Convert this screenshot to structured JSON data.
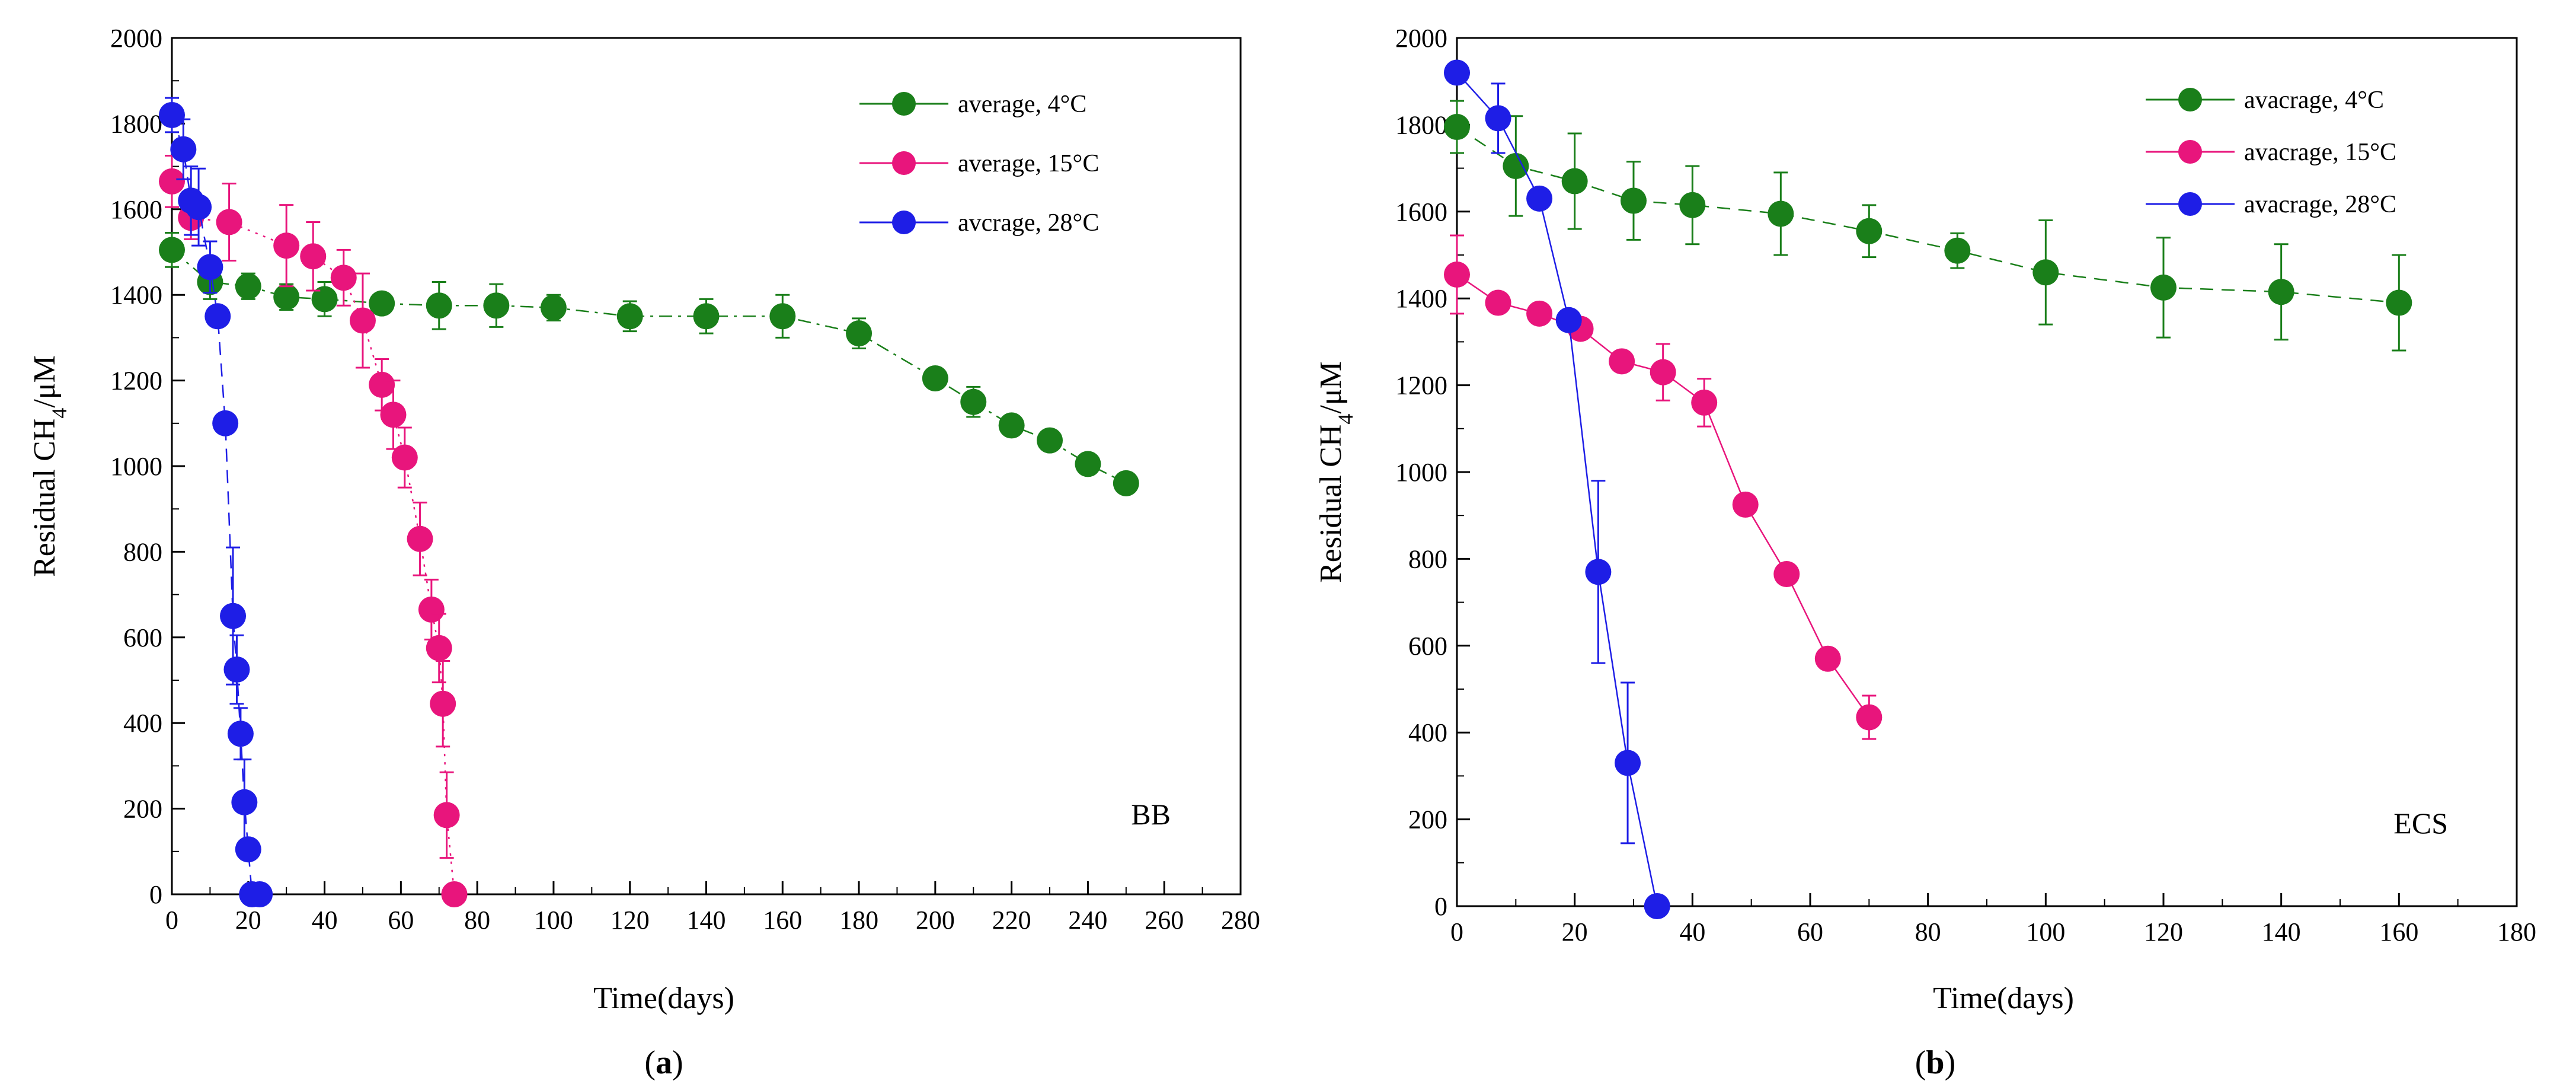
{
  "chart_data": [
    {
      "type": "scatter",
      "panel_label": "(a)",
      "panel_letter": "a",
      "corner_label": "BB",
      "xlabel": "Time(days)",
      "ylabel": "Residual CH4/μM",
      "xlim": [
        0,
        280
      ],
      "ylim": [
        0,
        2000
      ],
      "xticks": [
        0,
        20,
        40,
        60,
        80,
        100,
        120,
        140,
        160,
        180,
        200,
        220,
        240,
        260,
        280
      ],
      "yticks": [
        0,
        200,
        400,
        600,
        800,
        1000,
        1200,
        1400,
        1600,
        1800,
        2000
      ],
      "legend_position": "top-right",
      "series": [
        {
          "name": "average, 4°C",
          "color": "#1a7f1a",
          "line": "dash-dot",
          "x": [
            0,
            10,
            20,
            30,
            40,
            55,
            70,
            85,
            100,
            120,
            140,
            160,
            180,
            200,
            210,
            220,
            230,
            240,
            250
          ],
          "y": [
            1505,
            1430,
            1420,
            1395,
            1390,
            1380,
            1375,
            1375,
            1370,
            1350,
            1350,
            1350,
            1310,
            1205,
            1150,
            1095,
            1060,
            1005,
            960
          ],
          "err": [
            40,
            40,
            30,
            30,
            40,
            20,
            55,
            50,
            30,
            35,
            40,
            50,
            35,
            0,
            35,
            0,
            0,
            0,
            0
          ]
        },
        {
          "name": "average, 15°C",
          "color": "#e8157c",
          "line": "dotted",
          "x": [
            0,
            5,
            15,
            30,
            37,
            45,
            50,
            55,
            58,
            61,
            65,
            68,
            70,
            71,
            72,
            74
          ],
          "y": [
            1665,
            1580,
            1570,
            1515,
            1490,
            1440,
            1340,
            1190,
            1120,
            1020,
            830,
            665,
            575,
            445,
            185,
            0
          ],
          "err": [
            60,
            50,
            90,
            95,
            80,
            65,
            110,
            60,
            80,
            70,
            85,
            70,
            80,
            100,
            100,
            0
          ]
        },
        {
          "name": "avcrage, 28°C",
          "color": "#1e1ee6",
          "line": "dashed",
          "x": [
            0,
            3,
            5,
            7,
            10,
            12,
            14,
            16,
            17,
            18,
            19,
            20,
            21,
            23
          ],
          "y": [
            1820,
            1740,
            1620,
            1605,
            1465,
            1350,
            1100,
            650,
            525,
            375,
            215,
            105,
            0,
            0
          ],
          "err": [
            40,
            70,
            80,
            90,
            60,
            0,
            0,
            160,
            80,
            60,
            100,
            0,
            0,
            0
          ]
        }
      ]
    },
    {
      "type": "scatter",
      "panel_label": "(b)",
      "panel_letter": "b",
      "corner_label": "ECS",
      "xlabel": "Time(days)",
      "ylabel": "Residual CH4/μM",
      "xlim": [
        0,
        180
      ],
      "ylim": [
        0,
        2000
      ],
      "xticks": [
        0,
        20,
        40,
        60,
        80,
        100,
        120,
        140,
        160,
        180
      ],
      "yticks": [
        0,
        200,
        400,
        600,
        800,
        1000,
        1200,
        1400,
        1600,
        1800,
        2000
      ],
      "legend_position": "top-right",
      "series": [
        {
          "name": "avacrage, 4°C",
          "color": "#1a7f1a",
          "line": "dashed",
          "x": [
            0,
            10,
            20,
            30,
            40,
            55,
            70,
            85,
            100,
            120,
            140,
            160
          ],
          "y": [
            1795,
            1705,
            1670,
            1625,
            1615,
            1595,
            1555,
            1510,
            1460,
            1425,
            1415,
            1390
          ],
          "err": [
            60,
            115,
            110,
            90,
            90,
            95,
            60,
            40,
            120,
            115,
            110,
            110
          ]
        },
        {
          "name": "avacrage, 15°C",
          "color": "#e8157c",
          "line": "solid",
          "x": [
            0,
            7,
            14,
            21,
            28,
            35,
            42,
            49,
            56,
            63,
            70
          ],
          "y": [
            1455,
            1390,
            1365,
            1330,
            1255,
            1230,
            1160,
            925,
            765,
            570,
            435
          ],
          "err": [
            90,
            0,
            0,
            0,
            0,
            65,
            55,
            0,
            0,
            0,
            50
          ]
        },
        {
          "name": "avacrage, 28°C",
          "color": "#1e1ee6",
          "line": "solid",
          "x": [
            0,
            7,
            14,
            19,
            24,
            29,
            34
          ],
          "y": [
            1920,
            1815,
            1630,
            1350,
            770,
            330,
            0
          ],
          "err": [
            0,
            80,
            0,
            0,
            210,
            185,
            0
          ]
        }
      ]
    }
  ]
}
